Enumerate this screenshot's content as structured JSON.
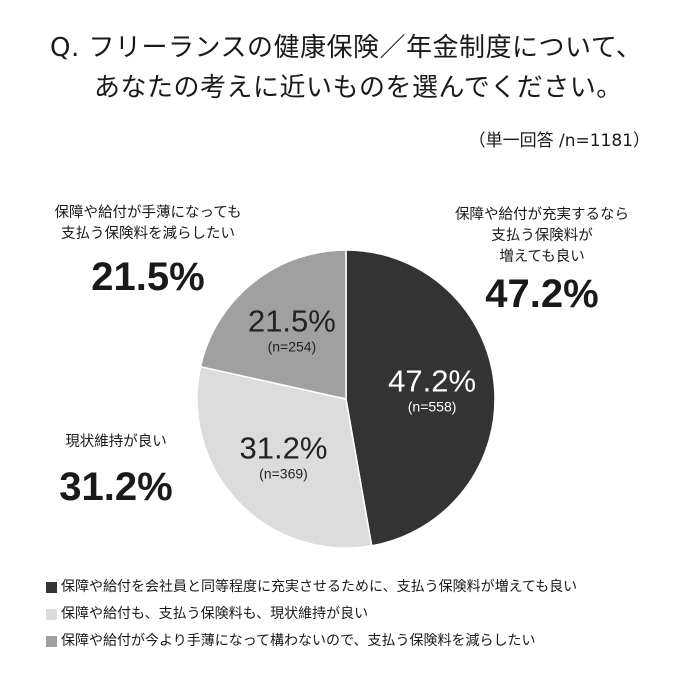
{
  "title": {
    "line1": "Q.  フリーランスの健康保険／年金制度について、",
    "line2": "あなたの考えに近いものを選んでください。"
  },
  "sample_note": "（単一回答 /n=1181）",
  "chart_data": {
    "type": "pie",
    "title": "",
    "slices": [
      {
        "key": "increase",
        "value": 47.2,
        "n": 558,
        "color": "#333333",
        "pct_label": "47.2%",
        "n_label": "(n=558)",
        "callout_lines": [
          "保障や給付が充実するなら",
          "支払う保険料が",
          "増えても良い"
        ],
        "legend": "保障や給付を会社員と同等程度に充実させるために、支払う保険料が増えても良い"
      },
      {
        "key": "keep",
        "value": 31.2,
        "n": 369,
        "color": "#dcdcdc",
        "pct_label": "31.2%",
        "n_label": "(n=369)",
        "callout_lines": [
          "現状維持が良い"
        ],
        "legend": "保障や給付も、支払う保険料も、現状維持が良い"
      },
      {
        "key": "reduce",
        "value": 21.5,
        "n": 254,
        "color": "#a0a0a0",
        "pct_label": "21.5%",
        "n_label": "(n=254)",
        "callout_lines": [
          "保障や給付が手薄になっても",
          "支払う保険料を減らしたい"
        ],
        "legend": "保障や給付が今より手薄になって構わないので、支払う保険料を減らしたい"
      }
    ],
    "legend_position": "bottom"
  }
}
